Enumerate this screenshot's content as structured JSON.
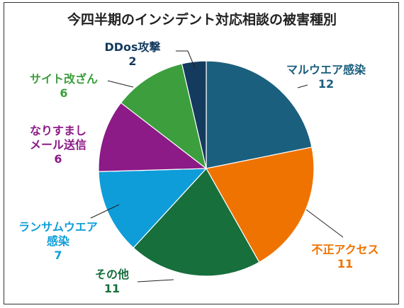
{
  "chart_data": {
    "type": "pie",
    "title": "今四半期のインシデント対応相談の被害種別",
    "start_angle_deg": -90,
    "direction": "clockwise",
    "slices": [
      {
        "name": "マルウエア感染",
        "lines": [
          "マルウエア感染",
          "12"
        ],
        "value": 12,
        "color": "#1B5F7E"
      },
      {
        "name": "不正アクセス",
        "lines": [
          "不正アクセス",
          "11"
        ],
        "value": 11,
        "color": "#EF7300"
      },
      {
        "name": "その他",
        "lines": [
          "その他",
          "11"
        ],
        "value": 11,
        "color": "#176F3C"
      },
      {
        "name": "ランサムウエア感染",
        "lines": [
          "ランサムウエア",
          "感染",
          "7"
        ],
        "value": 7,
        "color": "#0F9DD9"
      },
      {
        "name": "なりすましメール送信",
        "lines": [
          "なりすまし",
          "メール送信",
          "6"
        ],
        "value": 6,
        "color": "#8C1A87"
      },
      {
        "name": "サイト改ざん",
        "lines": [
          "サイト改ざん",
          "6"
        ],
        "value": 6,
        "color": "#3C9E3C"
      },
      {
        "name": "DDos攻撃",
        "lines": [
          "DDos攻撃",
          "2"
        ],
        "value": 2,
        "color": "#143A5E"
      }
    ]
  }
}
